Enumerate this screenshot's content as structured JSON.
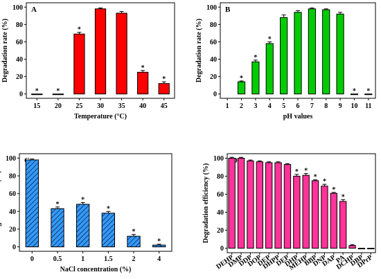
{
  "chart_data": [
    {
      "panel": "A",
      "type": "bar",
      "color": "#ff0000",
      "pattern": "solid",
      "xlabel": "Temperature (°C)",
      "ylabel": "Degradation rate (%)",
      "ylim": [
        -5,
        105
      ],
      "yticks": [
        0,
        20,
        40,
        60,
        80,
        100
      ],
      "categories": [
        "15",
        "20",
        "25",
        "30",
        "35",
        "40",
        "45"
      ],
      "values": [
        0,
        0,
        69,
        98,
        93,
        25,
        12
      ],
      "errors": [
        0,
        0,
        2,
        1,
        2,
        2,
        2
      ],
      "stars": [
        true,
        true,
        true,
        false,
        false,
        true,
        true
      ],
      "star_label": "*",
      "grid": false
    },
    {
      "panel": "B",
      "type": "bar",
      "color": "#00cc00",
      "pattern": "solid",
      "xlabel": "pH values",
      "ylabel": "Degradation rate (%)",
      "ylim": [
        -5,
        105
      ],
      "yticks": [
        0,
        20,
        40,
        60,
        80,
        100
      ],
      "x_axis_labels": [
        "1",
        "2",
        "3",
        "4",
        "5",
        "6",
        "7",
        "8",
        "9",
        "10",
        "11"
      ],
      "categories": [
        "2",
        "3",
        "4",
        "5",
        "6",
        "7",
        "8",
        "9",
        "10",
        "11"
      ],
      "values": [
        14,
        37,
        58,
        88,
        94,
        98,
        97,
        92,
        0,
        0
      ],
      "errors": [
        1,
        2,
        2,
        3,
        2,
        1,
        1,
        2,
        0,
        0
      ],
      "stars": [
        true,
        true,
        true,
        false,
        false,
        false,
        false,
        false,
        true,
        true
      ],
      "star_label": "*",
      "grid": false
    },
    {
      "panel": "C",
      "type": "bar",
      "color": "#3399ff",
      "pattern": "hatched",
      "xlabel": "NaCl concentration (%)",
      "ylabel": "Degradation rate (%)",
      "ylim": [
        -5,
        105
      ],
      "yticks": [
        0,
        20,
        40,
        60,
        80,
        100
      ],
      "categories": [
        "0",
        "0.5",
        "1",
        "1.5",
        "2",
        "4"
      ],
      "values": [
        98,
        43,
        48,
        38,
        12,
        2
      ],
      "errors": [
        1,
        2,
        2,
        2,
        2,
        1
      ],
      "stars": [
        false,
        true,
        true,
        true,
        true,
        true
      ],
      "star_label": "*",
      "grid": false
    },
    {
      "panel": "D",
      "type": "bar",
      "color": "#ff3399",
      "pattern": "solid",
      "xlabel": "",
      "ylabel": "Degradation efficiency (%)",
      "ylim": [
        -5,
        105
      ],
      "yticks": [
        0,
        20,
        40,
        60,
        80,
        100
      ],
      "categories": [
        "DEHP",
        "DMP",
        "DDP",
        "DOP",
        "DEP",
        "DHPP",
        "DEP",
        "DHP",
        "MEHP",
        "BBP",
        "DNP",
        "DAP",
        "PA",
        "DCHP",
        "DBP",
        "DPrP"
      ],
      "values": [
        100,
        100,
        97,
        96,
        95,
        95,
        93,
        80,
        81,
        75,
        69,
        61,
        52,
        3,
        0,
        0
      ],
      "errors": [
        1,
        1,
        1,
        1,
        1,
        1,
        1,
        2,
        2,
        1,
        2,
        1,
        2,
        1,
        0,
        0
      ],
      "stars": [
        false,
        false,
        false,
        false,
        false,
        false,
        false,
        true,
        true,
        true,
        true,
        true,
        true,
        false,
        false,
        false
      ],
      "star_label": "*",
      "grid": false
    }
  ]
}
